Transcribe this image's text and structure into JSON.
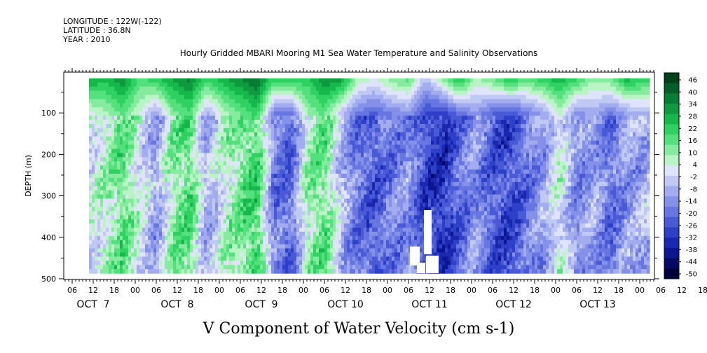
{
  "header": {
    "longitude": "LONGITUDE : 122W(-122)",
    "latitude": "LATITUDE : 36.8N",
    "year": "YEAR : 2010"
  },
  "chart_data": {
    "type": "heatmap",
    "title": "Hourly Gridded MBARI Mooring M1 Sea Water Temperature and Salinity Observations",
    "xlabel": "V Component of Water Velocity (cm s-1)",
    "ylabel": "DEPTH (m)",
    "ylim": [
      500,
      0
    ],
    "y_ticks": [
      100,
      200,
      300,
      400,
      500
    ],
    "y_tick_labels": [
      "100",
      "200",
      "300",
      "400",
      "500"
    ],
    "x_hour_labels": [
      "06",
      "12",
      "18",
      "00",
      "06",
      "12",
      "18",
      "00",
      "06",
      "12",
      "18",
      "00",
      "06",
      "12",
      "18",
      "00",
      "06",
      "12",
      "18",
      "00",
      "06",
      "12",
      "18",
      "00",
      "06",
      "12",
      "18",
      "00",
      "06",
      "12",
      "18",
      "00"
    ],
    "x_day_labels": [
      "OCT  7",
      "OCT  8",
      "OCT  9",
      "OCT 10",
      "OCT 11",
      "OCT 12",
      "OCT 13"
    ],
    "data_depth_range": [
      15,
      485
    ],
    "colorbar_labels": [
      "46",
      "40",
      "34",
      "28",
      "22",
      "16",
      "10",
      "4",
      "-2",
      "-8",
      "-14",
      "-20",
      "-26",
      "-32",
      "-38",
      "-44",
      "-50"
    ],
    "colorbar_colors": [
      "#00401a",
      "#035f28",
      "#087d34",
      "#0f9a3f",
      "#16b84b",
      "#2fd162",
      "#55e07e",
      "#85ec9f",
      "#b8f4c4",
      "#dfe4fb",
      "#c0c8f4",
      "#a2acee",
      "#8591e8",
      "#6776e0",
      "#4a5ad6",
      "#2f40c8",
      "#1a28b0",
      "#0c1690",
      "#040866",
      "#00003a"
    ],
    "columns": [
      {
        "t": 0.0,
        "top": 30,
        "mid": 2
      },
      {
        "t": 0.03,
        "top": 26,
        "mid": 8
      },
      {
        "t": 0.06,
        "top": 34,
        "mid": 16
      },
      {
        "t": 0.09,
        "top": 18,
        "mid": 4
      },
      {
        "t": 0.12,
        "top": 22,
        "mid": -10
      },
      {
        "t": 0.15,
        "top": 30,
        "mid": 12
      },
      {
        "t": 0.18,
        "top": 36,
        "mid": 18
      },
      {
        "t": 0.21,
        "top": 20,
        "mid": -8
      },
      {
        "t": 0.24,
        "top": 28,
        "mid": 6
      },
      {
        "t": 0.27,
        "top": 34,
        "mid": 14
      },
      {
        "t": 0.3,
        "top": 40,
        "mid": 22
      },
      {
        "t": 0.33,
        "top": 20,
        "mid": -16
      },
      {
        "t": 0.36,
        "top": 24,
        "mid": -20
      },
      {
        "t": 0.39,
        "top": 22,
        "mid": 10
      },
      {
        "t": 0.42,
        "top": 34,
        "mid": 16
      },
      {
        "t": 0.45,
        "top": 30,
        "mid": -4
      },
      {
        "t": 0.48,
        "top": 8,
        "mid": -18
      },
      {
        "t": 0.51,
        "top": 4,
        "mid": -22
      },
      {
        "t": 0.54,
        "top": 12,
        "mid": -16
      },
      {
        "t": 0.57,
        "top": 16,
        "mid": -12
      },
      {
        "t": 0.6,
        "top": -6,
        "mid": -26
      },
      {
        "t": 0.63,
        "top": 10,
        "mid": -30
      },
      {
        "t": 0.66,
        "top": 26,
        "mid": -20
      },
      {
        "t": 0.69,
        "top": 8,
        "mid": -12
      },
      {
        "t": 0.72,
        "top": 14,
        "mid": -22
      },
      {
        "t": 0.75,
        "top": 24,
        "mid": -26
      },
      {
        "t": 0.78,
        "top": 16,
        "mid": -18
      },
      {
        "t": 0.81,
        "top": 22,
        "mid": -10
      },
      {
        "t": 0.84,
        "top": 28,
        "mid": 6
      },
      {
        "t": 0.87,
        "top": 20,
        "mid": -14
      },
      {
        "t": 0.9,
        "top": 10,
        "mid": -8
      },
      {
        "t": 0.93,
        "top": 14,
        "mid": -18
      },
      {
        "t": 0.96,
        "top": 26,
        "mid": -10
      },
      {
        "t": 1.0,
        "top": 20,
        "mid": -6
      }
    ]
  }
}
